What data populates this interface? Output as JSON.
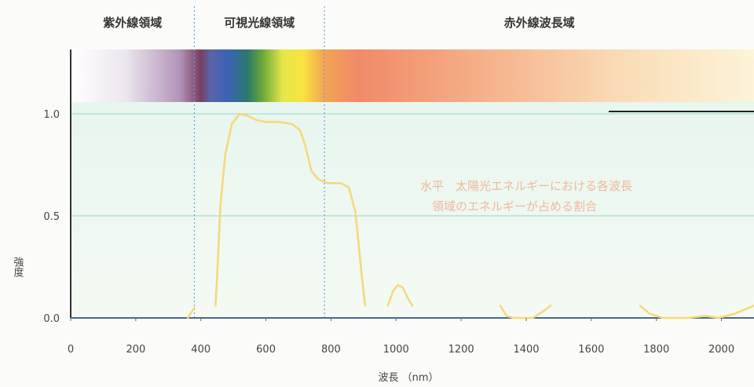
{
  "chart_data": {
    "type": "line",
    "title": "",
    "regions": [
      {
        "label": "紫外線領域",
        "from": 0,
        "to": 380
      },
      {
        "label": "可視光線領域",
        "from": 380,
        "to": 780
      },
      {
        "label": "赤外線波長域",
        "from": 780,
        "to": 2100
      }
    ],
    "xlabel": "波長 （nm）",
    "ylabel": "強度",
    "xlim": [
      0,
      2100
    ],
    "ylim": [
      0,
      1.2
    ],
    "x_ticks": [
      0,
      200,
      400,
      600,
      800,
      1000,
      1200,
      1400,
      1600,
      1800,
      2000
    ],
    "y_ticks": [
      0.0,
      0.5,
      1.0
    ],
    "y_tick_labels": [
      "0.0",
      "0.5",
      "1.0"
    ],
    "annotation": "水平　太陽光エネルギーにおける各波長\n　領域のエネルギーが占める割合",
    "series": [
      {
        "name": "",
        "segments": [
          [
            [
              360,
              0.0
            ],
            [
              380,
              0.05
            ]
          ],
          [
            [
              445,
              0.06
            ],
            [
              450,
              0.2
            ],
            [
              460,
              0.55
            ],
            [
              475,
              0.8
            ],
            [
              495,
              0.95
            ],
            [
              520,
              1.0
            ],
            [
              545,
              0.99
            ],
            [
              570,
              0.97
            ],
            [
              600,
              0.96
            ],
            [
              640,
              0.96
            ],
            [
              680,
              0.95
            ],
            [
              705,
              0.92
            ],
            [
              720,
              0.85
            ],
            [
              740,
              0.72
            ],
            [
              760,
              0.68
            ],
            [
              790,
              0.66
            ],
            [
              830,
              0.66
            ],
            [
              855,
              0.64
            ],
            [
              875,
              0.52
            ],
            [
              895,
              0.2
            ],
            [
              905,
              0.06
            ]
          ],
          [
            [
              975,
              0.06
            ],
            [
              990,
              0.13
            ],
            [
              1005,
              0.16
            ],
            [
              1020,
              0.15
            ],
            [
              1035,
              0.1
            ],
            [
              1050,
              0.06
            ]
          ],
          [
            [
              1320,
              0.06
            ],
            [
              1340,
              0.01
            ],
            [
              1360,
              0.0
            ],
            [
              1420,
              0.0
            ],
            [
              1450,
              0.03
            ],
            [
              1475,
              0.06
            ]
          ],
          [
            [
              1750,
              0.06
            ],
            [
              1780,
              0.02
            ],
            [
              1820,
              0.0
            ],
            [
              1900,
              0.0
            ],
            [
              1950,
              0.01
            ],
            [
              1990,
              0.0
            ],
            [
              2040,
              0.02
            ],
            [
              2100,
              0.06
            ]
          ]
        ]
      }
    ]
  }
}
